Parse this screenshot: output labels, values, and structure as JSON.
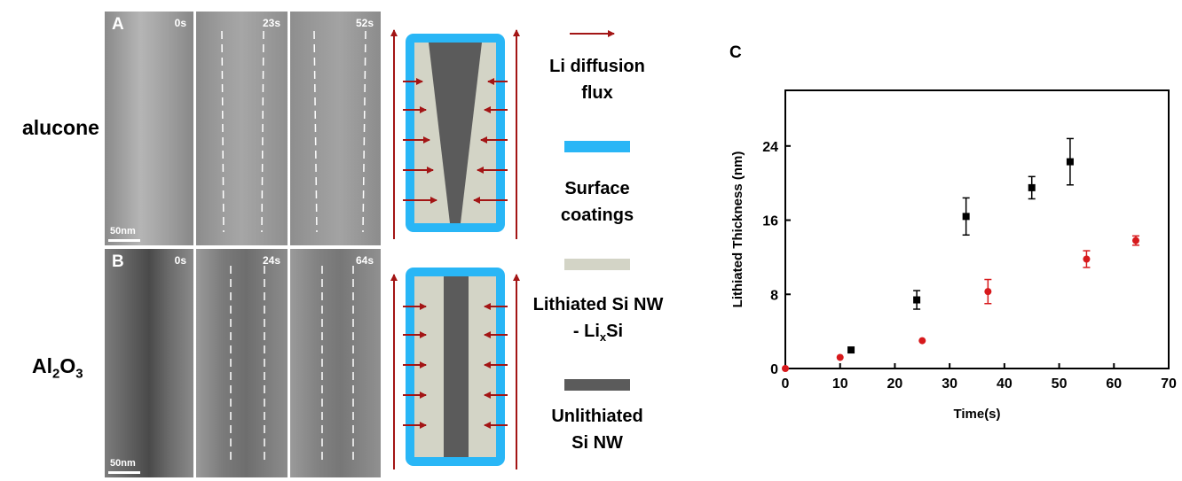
{
  "rows": {
    "alucone": "alucone",
    "al2o3_base1": "Al",
    "al2o3_sub1": "2",
    "al2o3_base2": "O",
    "al2o3_sub2": "3"
  },
  "panels": {
    "A": "A",
    "B": "B",
    "C": "C"
  },
  "tem_a": {
    "times": [
      "0s",
      "23s",
      "52s"
    ],
    "scale_bar": "50nm"
  },
  "tem_b": {
    "times": [
      "0s",
      "24s",
      "64s"
    ],
    "scale_bar": "50nm"
  },
  "legend": {
    "flux": [
      "Li diffusion",
      "flux"
    ],
    "coating": [
      "Surface",
      "coatings"
    ],
    "lithiated_line1": "Lithiated Si NW",
    "lithiated_line2_pre": "- Li",
    "lithiated_line2_sub": "x",
    "lithiated_line2_post": "Si",
    "unlithiated": [
      "Unlithiated",
      "Si NW"
    ]
  },
  "colors": {
    "arrow": "#a31515",
    "coating": "#29b6f6",
    "lithiated": "#d3d4c6",
    "unlithiated": "#5b5b5b",
    "series_black": "#000000",
    "series_red": "#d7191c"
  },
  "chart_data": {
    "type": "scatter",
    "title": "C",
    "xlabel": "Time(s)",
    "ylabel": "Lithiated Thickness (nm)",
    "xlim": [
      0,
      70
    ],
    "ylim": [
      0,
      30
    ],
    "xticks": [
      0,
      10,
      20,
      30,
      40,
      50,
      60,
      70
    ],
    "yticks": [
      0,
      8,
      16,
      24
    ],
    "series": [
      {
        "marker": "square",
        "color": "#000000",
        "points": [
          {
            "x": 12,
            "y": 2.0,
            "err": 0
          },
          {
            "x": 24,
            "y": 7.4,
            "err": 1.0
          },
          {
            "x": 33,
            "y": 16.4,
            "err": 2.0
          },
          {
            "x": 45,
            "y": 19.5,
            "err": 1.2
          },
          {
            "x": 52,
            "y": 22.3,
            "err": 2.5
          }
        ]
      },
      {
        "marker": "circle",
        "color": "#d7191c",
        "points": [
          {
            "x": 0,
            "y": 0.0,
            "err": 0
          },
          {
            "x": 10,
            "y": 1.2,
            "err": 0
          },
          {
            "x": 25,
            "y": 3.0,
            "err": 0
          },
          {
            "x": 37,
            "y": 8.3,
            "err": 1.3
          },
          {
            "x": 55,
            "y": 11.8,
            "err": 0.9
          },
          {
            "x": 64,
            "y": 13.8,
            "err": 0.5
          }
        ]
      }
    ]
  }
}
